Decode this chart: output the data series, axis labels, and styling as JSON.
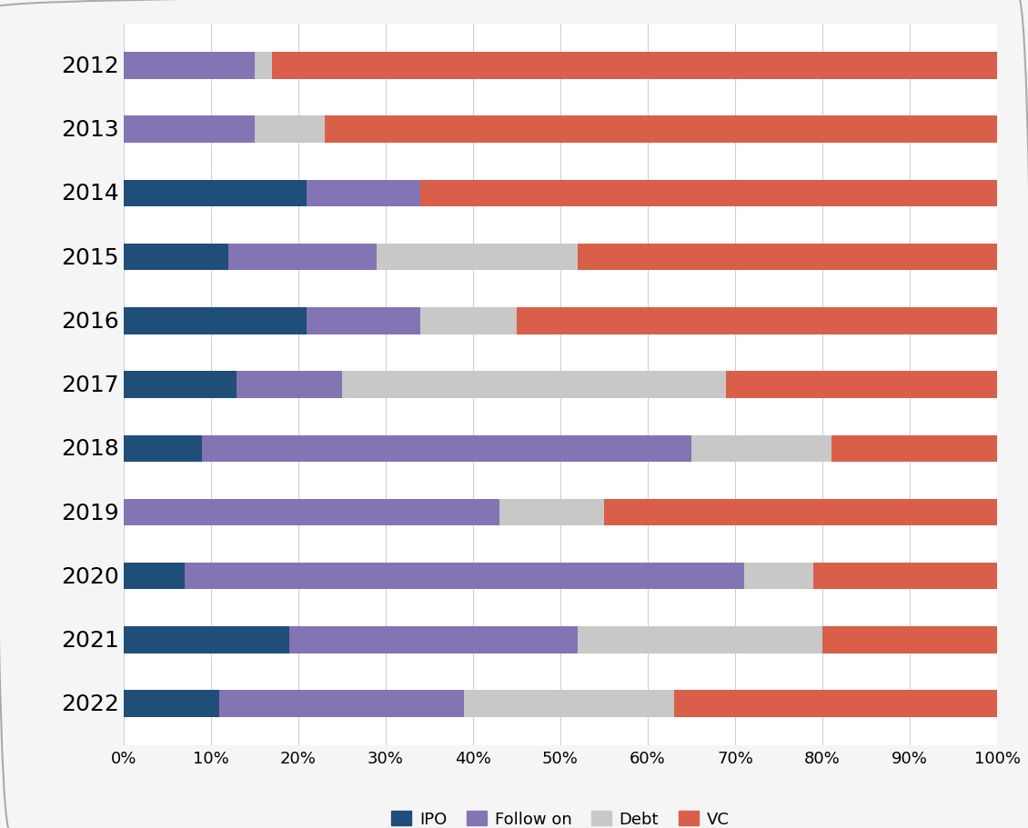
{
  "years": [
    "2012",
    "2013",
    "2014",
    "2015",
    "2016",
    "2017",
    "2018",
    "2019",
    "2020",
    "2021",
    "2022"
  ],
  "IPO": [
    0,
    0,
    21,
    12,
    21,
    13,
    9,
    0,
    7,
    19,
    11
  ],
  "Follow_on": [
    15,
    15,
    13,
    17,
    13,
    12,
    56,
    43,
    64,
    33,
    28
  ],
  "Debt": [
    2,
    8,
    0,
    23,
    11,
    44,
    16,
    12,
    8,
    28,
    24
  ],
  "VC": [
    83,
    77,
    66,
    48,
    55,
    31,
    19,
    45,
    21,
    20,
    37
  ],
  "colors": {
    "IPO": "#1f4e79",
    "Follow_on": "#8474b4",
    "Debt": "#c8c8c8",
    "VC": "#d95f4b"
  },
  "legend_labels": [
    "IPO",
    "Follow on",
    "Debt",
    "VC"
  ],
  "bar_height": 0.42,
  "xlim": [
    0,
    100
  ],
  "xlabel_ticks": [
    0,
    10,
    20,
    30,
    40,
    50,
    60,
    70,
    80,
    90,
    100
  ],
  "xlabel_labels": [
    "0%",
    "10%",
    "20%",
    "30%",
    "40%",
    "50%",
    "60%",
    "70%",
    "80%",
    "90%",
    "100%"
  ],
  "fig_facecolor": "#f5f5f5",
  "ax_facecolor": "#ffffff",
  "border_color": "#aaaaaa",
  "grid_color": "#d0d0d0",
  "ytick_fontsize": 18,
  "xtick_fontsize": 13,
  "legend_fontsize": 13
}
